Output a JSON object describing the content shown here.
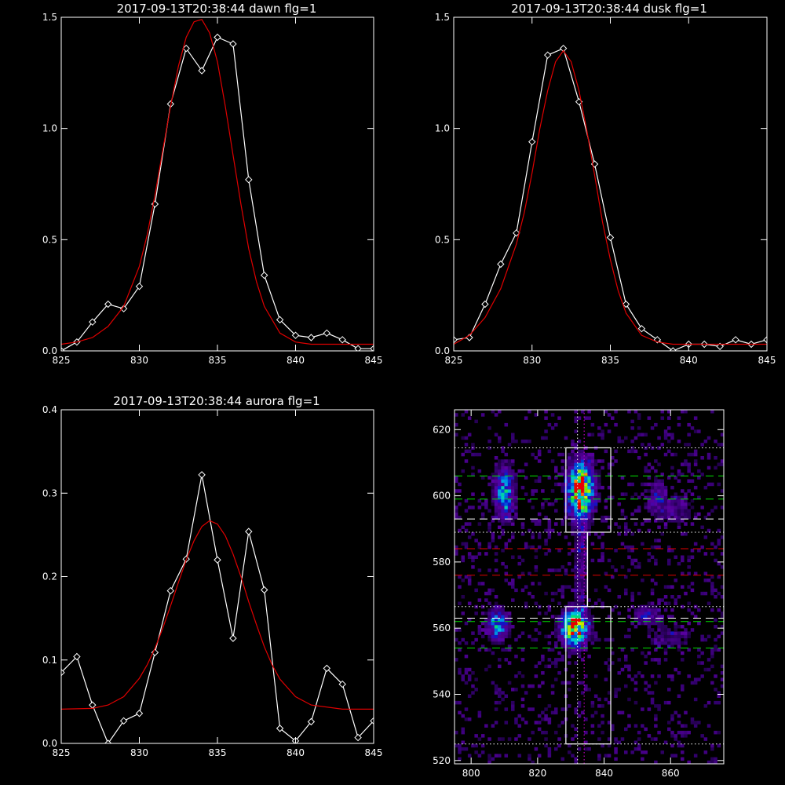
{
  "chart_data": [
    {
      "id": "dawn",
      "type": "line",
      "title": "2017-09-13T20:38:44 dawn flg=1",
      "xlim": [
        825,
        845
      ],
      "ylim": [
        0,
        1.5
      ],
      "xticks": [
        "825",
        "830",
        "835",
        "840",
        "845"
      ],
      "yticks": [
        "0.0",
        "0.5",
        "1.0",
        "1.5"
      ],
      "series": [
        {
          "style": "data",
          "color": "#ffffff",
          "marker": "diamond",
          "x": [
            825,
            826,
            827,
            828,
            829,
            830,
            831,
            832,
            833,
            834,
            835,
            836,
            837,
            838,
            839,
            840,
            841,
            842,
            843,
            844,
            845
          ],
          "y": [
            0.0,
            0.04,
            0.13,
            0.21,
            0.19,
            0.29,
            0.66,
            1.11,
            1.36,
            1.26,
            1.41,
            1.38,
            0.77,
            0.34,
            0.14,
            0.07,
            0.06,
            0.08,
            0.05,
            0.01,
            0.01
          ]
        },
        {
          "style": "fit",
          "color": "#e00000",
          "x": [
            825,
            826,
            827,
            828,
            829,
            830,
            830.5,
            831,
            831.5,
            832,
            832.5,
            833,
            833.5,
            834,
            834.5,
            835,
            835.5,
            836,
            836.5,
            837,
            837.5,
            838,
            839,
            840,
            841,
            842,
            843,
            844,
            845
          ],
          "y": [
            0.03,
            0.04,
            0.06,
            0.11,
            0.2,
            0.38,
            0.52,
            0.7,
            0.9,
            1.1,
            1.28,
            1.41,
            1.48,
            1.49,
            1.43,
            1.3,
            1.1,
            0.88,
            0.66,
            0.46,
            0.31,
            0.2,
            0.08,
            0.04,
            0.03,
            0.03,
            0.03,
            0.03,
            0.03
          ]
        }
      ]
    },
    {
      "id": "dusk",
      "type": "line",
      "title": "2017-09-13T20:38:44 dusk flg=1",
      "xlim": [
        825,
        845
      ],
      "ylim": [
        0,
        1.5
      ],
      "xticks": [
        "825",
        "830",
        "835",
        "840",
        "845"
      ],
      "yticks": [
        "0.0",
        "0.5",
        "1.0",
        "1.5"
      ],
      "series": [
        {
          "style": "data",
          "color": "#ffffff",
          "marker": "diamond",
          "x": [
            825,
            826,
            827,
            828,
            829,
            830,
            831,
            832,
            833,
            834,
            835,
            836,
            837,
            838,
            839,
            840,
            841,
            842,
            843,
            844,
            845
          ],
          "y": [
            0.05,
            0.06,
            0.21,
            0.39,
            0.53,
            0.94,
            1.33,
            1.36,
            1.12,
            0.84,
            0.51,
            0.21,
            0.1,
            0.05,
            0.0,
            0.03,
            0.03,
            0.02,
            0.05,
            0.03,
            0.05
          ]
        },
        {
          "style": "fit",
          "color": "#e00000",
          "x": [
            825,
            826,
            827,
            828,
            829,
            829.5,
            830,
            830.5,
            831,
            831.5,
            832,
            832.5,
            833,
            833.5,
            834,
            834.5,
            835,
            835.5,
            836,
            837,
            838,
            839,
            840,
            841,
            842,
            843,
            844,
            845
          ],
          "y": [
            0.03,
            0.07,
            0.15,
            0.28,
            0.48,
            0.62,
            0.8,
            1.0,
            1.17,
            1.3,
            1.35,
            1.3,
            1.17,
            0.99,
            0.79,
            0.58,
            0.41,
            0.27,
            0.17,
            0.07,
            0.04,
            0.03,
            0.03,
            0.03,
            0.03,
            0.03,
            0.03,
            0.03
          ]
        }
      ]
    },
    {
      "id": "aurora",
      "type": "line",
      "title": "2017-09-13T20:38:44 aurora flg=1",
      "xlim": [
        825,
        845
      ],
      "ylim": [
        0,
        0.4
      ],
      "xticks": [
        "825",
        "830",
        "835",
        "840",
        "845"
      ],
      "yticks": [
        "0.0",
        "0.1",
        "0.2",
        "0.3",
        "0.4"
      ],
      "series": [
        {
          "style": "data",
          "color": "#ffffff",
          "marker": "diamond",
          "x": [
            825,
            826,
            827,
            828,
            829,
            830,
            831,
            832,
            833,
            834,
            835,
            836,
            837,
            838,
            839,
            840,
            841,
            842,
            843,
            844,
            845
          ],
          "y": [
            0.085,
            0.104,
            0.046,
            0.0,
            0.027,
            0.036,
            0.109,
            0.183,
            0.221,
            0.322,
            0.22,
            0.126,
            0.254,
            0.184,
            0.018,
            0.003,
            0.026,
            0.09,
            0.071,
            0.007,
            0.027
          ]
        },
        {
          "style": "fit",
          "color": "#e00000",
          "x": [
            825,
            827,
            828,
            829,
            830,
            830.5,
            831,
            831.5,
            832,
            832.5,
            833,
            833.5,
            834,
            834.5,
            835,
            835.5,
            836,
            836.5,
            837,
            837.5,
            838,
            838.5,
            839,
            840,
            841,
            843,
            845
          ],
          "y": [
            0.041,
            0.042,
            0.046,
            0.056,
            0.078,
            0.094,
            0.114,
            0.138,
            0.165,
            0.193,
            0.22,
            0.243,
            0.26,
            0.267,
            0.263,
            0.249,
            0.227,
            0.2,
            0.17,
            0.142,
            0.116,
            0.094,
            0.077,
            0.056,
            0.046,
            0.041,
            0.041
          ]
        }
      ]
    },
    {
      "id": "heatmap",
      "type": "heatmap",
      "title": "",
      "xlim": [
        795,
        876
      ],
      "ylim": [
        519,
        626
      ],
      "xticks": [
        "800",
        "820",
        "840",
        "860"
      ],
      "yticks": [
        "520",
        "540",
        "560",
        "580",
        "600",
        "620"
      ],
      "blobs": [
        {
          "x": 833,
          "y": 602,
          "sx": 2.6,
          "sy": 5.5,
          "peak": 1.0
        },
        {
          "x": 831,
          "y": 560,
          "sx": 2.6,
          "sy": 3.5,
          "peak": 1.0
        },
        {
          "x": 810,
          "y": 601,
          "sx": 2.0,
          "sy": 5.0,
          "peak": 0.55
        },
        {
          "x": 808,
          "y": 561,
          "sx": 2.0,
          "sy": 3.0,
          "peak": 0.55
        },
        {
          "x": 833,
          "y": 580,
          "sx": 1.5,
          "sy": 11.0,
          "peak": 0.18
        },
        {
          "x": 856,
          "y": 601,
          "sx": 1.5,
          "sy": 3.0,
          "peak": 0.25
        },
        {
          "x": 853,
          "y": 564,
          "sx": 2.5,
          "sy": 2.0,
          "peak": 0.3
        },
        {
          "x": 860,
          "y": 596,
          "sx": 5.0,
          "sy": 3.0,
          "peak": 0.18
        },
        {
          "x": 860,
          "y": 557,
          "sx": 5.0,
          "sy": 3.0,
          "peak": 0.14
        }
      ],
      "boxes": [
        {
          "x": [
            828.5,
            842
          ],
          "y": [
            589,
            614.5
          ]
        },
        {
          "x": [
            828.5,
            842
          ],
          "y": [
            525,
            566.5
          ]
        }
      ],
      "hlines": [
        {
          "y": 614.5,
          "color": "#ffffff",
          "style": "dotted"
        },
        {
          "y": 606,
          "color": "#00e000",
          "style": "dashed"
        },
        {
          "y": 599,
          "color": "#00e000",
          "style": "dashed"
        },
        {
          "y": 593,
          "color": "#ffffff",
          "style": "dashed"
        },
        {
          "y": 589,
          "color": "#ffffff",
          "style": "dotted"
        },
        {
          "y": 584,
          "color": "#e00000",
          "style": "dashed"
        },
        {
          "y": 576,
          "color": "#e00000",
          "style": "dashed"
        },
        {
          "y": 566.5,
          "color": "#ffffff",
          "style": "dotted"
        },
        {
          "y": 563,
          "color": "#ffffff",
          "style": "dashed"
        },
        {
          "y": 562,
          "color": "#00e000",
          "style": "dashed"
        },
        {
          "y": 554,
          "color": "#00e000",
          "style": "dashed"
        },
        {
          "y": 525,
          "color": "#ffffff",
          "style": "dotted"
        }
      ],
      "vlines": [
        {
          "x": 832,
          "color": "#ffffff",
          "style": "dotted"
        },
        {
          "x": 834,
          "color": "#e000e0",
          "style": "dotted"
        },
        {
          "x": 835,
          "color": "#ffffff",
          "style": "solid",
          "y": [
            566.5,
            589
          ]
        }
      ]
    }
  ]
}
